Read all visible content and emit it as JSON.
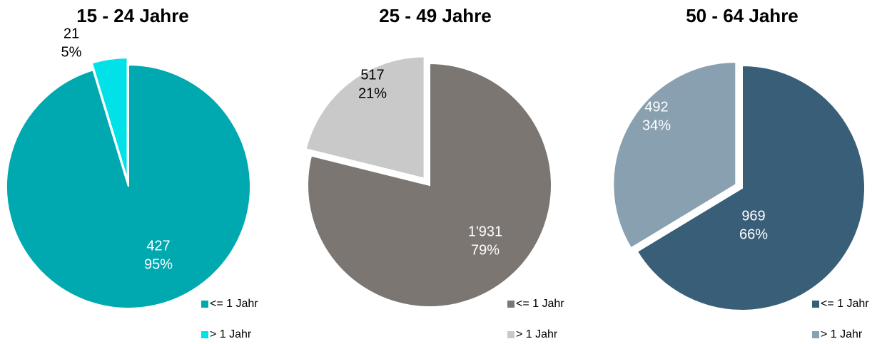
{
  "chart_data": [
    {
      "type": "pie",
      "title": "15 - 24 Jahre",
      "categories": [
        "<= 1 Jahr",
        "> 1 Jahr"
      ],
      "values": [
        427,
        21
      ],
      "value_labels": [
        "427",
        "21"
      ],
      "percent_labels": [
        "95%",
        "5%"
      ],
      "colors": [
        "#00a9b0",
        "#00e1e8"
      ]
    },
    {
      "type": "pie",
      "title": "25 - 49 Jahre",
      "categories": [
        "<= 1 Jahr",
        "> 1 Jahr"
      ],
      "values": [
        1931,
        517
      ],
      "value_labels": [
        "1'931",
        "517"
      ],
      "percent_labels": [
        "79%",
        "21%"
      ],
      "colors": [
        "#7b7672",
        "#c9c9c9"
      ]
    },
    {
      "type": "pie",
      "title": "50 - 64 Jahre",
      "categories": [
        "<= 1 Jahr",
        "> 1 Jahr"
      ],
      "values": [
        969,
        492
      ],
      "value_labels": [
        "969",
        "492"
      ],
      "percent_labels": [
        "66%",
        "34%"
      ],
      "colors": [
        "#385e78",
        "#89a0b0"
      ]
    }
  ]
}
